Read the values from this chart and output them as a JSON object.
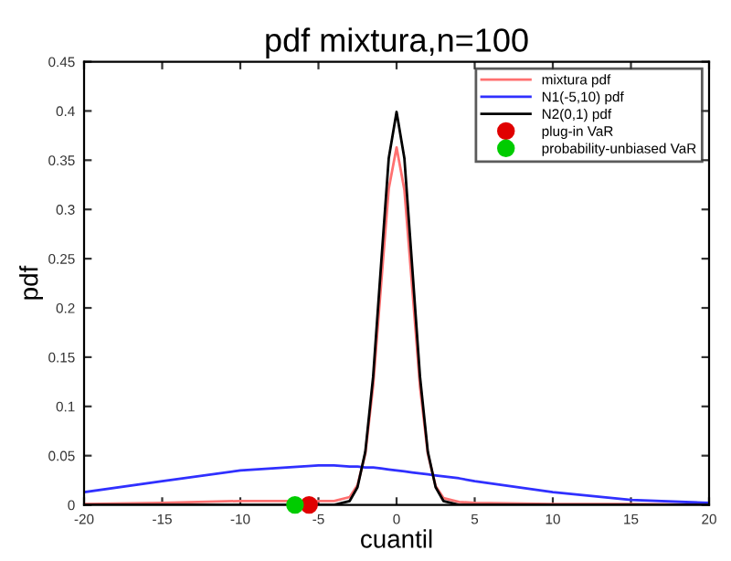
{
  "chart_data": {
    "type": "line",
    "title": "pdf mixtura,n=100",
    "xlabel": "cuantil",
    "ylabel": "pdf",
    "xlim": [
      -20,
      20
    ],
    "ylim": [
      0,
      0.45
    ],
    "xticks": [
      -20,
      -15,
      -10,
      -5,
      0,
      5,
      10,
      15,
      20
    ],
    "yticks": [
      0,
      0.05,
      0.1,
      0.15,
      0.2,
      0.25,
      0.3,
      0.35,
      0.4,
      0.45
    ],
    "grid": false,
    "legend": "top right",
    "marker": "none",
    "line_style": "solid",
    "x": [
      -20,
      -15,
      -10,
      -5,
      -4,
      -3,
      -2.5,
      -2,
      -1.5,
      -1,
      -0.5,
      0,
      0.5,
      1,
      1.5,
      2,
      2.5,
      3,
      4,
      5,
      10,
      15,
      20
    ],
    "series": [
      {
        "name": "mixtura pdf",
        "color": "#ff7070",
        "values": [
          0.001,
          0.002,
          0.004,
          0.004,
          0.004,
          0.008,
          0.02,
          0.052,
          0.121,
          0.222,
          0.321,
          0.363,
          0.32,
          0.221,
          0.12,
          0.052,
          0.019,
          0.007,
          0.003,
          0.002,
          0.001,
          0.001,
          0.0
        ]
      },
      {
        "name": "N1(-5,10) pdf",
        "color": "#3030ff",
        "values": [
          0.013,
          0.024,
          0.035,
          0.04,
          0.04,
          0.039,
          0.039,
          0.038,
          0.038,
          0.037,
          0.036,
          0.035,
          0.034,
          0.033,
          0.032,
          0.031,
          0.03,
          0.029,
          0.027,
          0.024,
          0.013,
          0.005,
          0.002
        ]
      },
      {
        "name": "N2(0,1) pdf",
        "color": "#000000",
        "values": [
          0.0,
          0.0,
          0.0,
          0.0,
          0.0,
          0.004,
          0.018,
          0.054,
          0.13,
          0.242,
          0.352,
          0.399,
          0.352,
          0.242,
          0.13,
          0.054,
          0.018,
          0.004,
          0.0,
          0.0,
          0.0,
          0.0,
          0.0
        ]
      },
      {
        "name": "plug-in VaR",
        "type": "scatter",
        "marker": "circle",
        "color": "#e00000",
        "x": [
          -5.6
        ],
        "values": [
          0
        ]
      },
      {
        "name": "probability-unbiased VaR",
        "type": "scatter",
        "marker": "circle",
        "color": "#00cc00",
        "x": [
          -6.5
        ],
        "values": [
          0
        ]
      }
    ]
  }
}
